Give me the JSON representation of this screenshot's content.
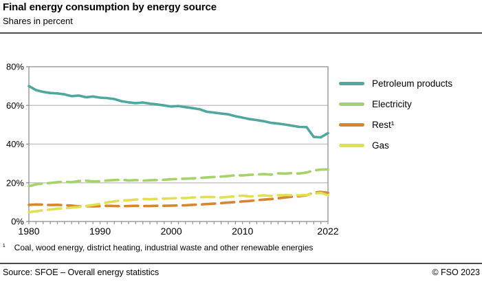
{
  "header": {
    "title": "Final energy consumption by energy source",
    "subtitle": "Shares in percent"
  },
  "footnote": {
    "marker": "¹",
    "text": "Coal, wood energy, district heating, industrial waste and other renewable energies"
  },
  "footer": {
    "source": "Source: SFOE – Overall energy statistics",
    "copyright": "© FSO 2023"
  },
  "chart_data": {
    "type": "line",
    "title": "Final energy consumption by energy source",
    "subtitle": "Shares in percent",
    "grid": "horizontal",
    "legend_position": "right",
    "ylim": [
      0,
      80
    ],
    "yticks": [
      0,
      20,
      40,
      60,
      80
    ],
    "ytick_suffix": "%",
    "xticks_labeled": [
      1980,
      1990,
      2000,
      2010,
      2022
    ],
    "xticks_minor_every": 1,
    "style": {
      "grid_color": "#c6c6c6",
      "frame_color": "#8f8f8f"
    },
    "x": [
      1980,
      1981,
      1982,
      1983,
      1984,
      1985,
      1986,
      1987,
      1988,
      1989,
      1990,
      1991,
      1992,
      1993,
      1994,
      1995,
      1996,
      1997,
      1998,
      1999,
      2000,
      2001,
      2002,
      2003,
      2004,
      2005,
      2006,
      2007,
      2008,
      2009,
      2010,
      2011,
      2012,
      2013,
      2014,
      2015,
      2016,
      2017,
      2018,
      2019,
      2020,
      2021,
      2022
    ],
    "series": [
      {
        "name": "Petroleum products",
        "color": "#4ea89d",
        "dash": "solid",
        "values": [
          70.0,
          67.9,
          67.0,
          66.4,
          66.2,
          65.7,
          64.8,
          65.1,
          64.2,
          64.6,
          64.0,
          63.8,
          63.3,
          62.2,
          61.6,
          61.2,
          61.5,
          60.9,
          60.5,
          60.0,
          59.4,
          59.7,
          59.1,
          58.6,
          58.0,
          56.7,
          56.3,
          55.8,
          55.4,
          54.4,
          53.7,
          52.9,
          52.4,
          51.8,
          51.0,
          50.6,
          50.1,
          49.5,
          48.9,
          48.8,
          43.7,
          43.5,
          45.7
        ]
      },
      {
        "name": "Electricity",
        "color": "#a5d36a",
        "dash": "dashed",
        "values": [
          18.2,
          19.2,
          19.6,
          19.9,
          20.3,
          20.5,
          20.3,
          20.9,
          21.1,
          20.7,
          20.8,
          21.2,
          21.4,
          21.6,
          21.2,
          21.4,
          21.1,
          21.3,
          21.4,
          21.6,
          21.8,
          22.0,
          22.1,
          22.3,
          22.5,
          22.8,
          23.0,
          23.2,
          23.5,
          23.9,
          23.8,
          24.1,
          24.3,
          24.5,
          24.2,
          24.9,
          24.8,
          25.0,
          24.8,
          25.3,
          26.4,
          26.8,
          26.9
        ]
      },
      {
        "name": "Rest¹",
        "color": "#d8862e",
        "dash": "dashed",
        "values": [
          8.6,
          8.8,
          8.7,
          8.5,
          8.6,
          8.4,
          8.2,
          7.8,
          7.9,
          7.8,
          7.9,
          8.1,
          8.0,
          7.9,
          8.0,
          8.1,
          8.0,
          8.0,
          8.1,
          8.1,
          8.2,
          8.3,
          8.4,
          8.6,
          8.8,
          9.0,
          9.2,
          9.5,
          9.8,
          10.0,
          10.4,
          10.6,
          11.0,
          11.3,
          11.6,
          12.0,
          12.4,
          12.8,
          13.1,
          13.5,
          14.9,
          15.3,
          14.8
        ]
      },
      {
        "name": "Gas",
        "color": "#e2e051",
        "dash": "dashed",
        "values": [
          4.8,
          5.3,
          5.8,
          6.2,
          6.6,
          6.8,
          7.2,
          7.5,
          8.0,
          8.5,
          9.1,
          9.8,
          10.4,
          10.9,
          11.0,
          11.3,
          11.6,
          11.5,
          11.7,
          11.8,
          11.9,
          12.2,
          12.1,
          12.4,
          12.5,
          12.7,
          12.6,
          12.4,
          12.7,
          13.0,
          13.4,
          12.9,
          13.2,
          13.5,
          13.2,
          13.5,
          13.7,
          13.6,
          13.5,
          13.7,
          14.4,
          14.8,
          13.6
        ]
      }
    ]
  }
}
